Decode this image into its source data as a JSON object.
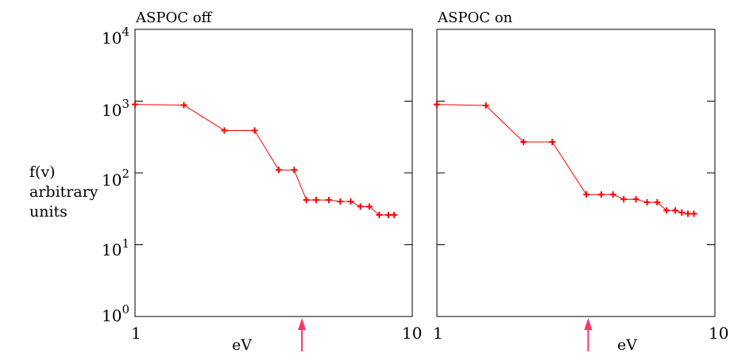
{
  "y_axis_label_lines": [
    "f(v)",
    "arbitrary",
    "units"
  ],
  "chart_data": [
    {
      "type": "line",
      "title": "ASPOC off",
      "xlabel": "eV",
      "ylabel": "f(v) arbitrary units",
      "xscale": "log",
      "yscale": "log",
      "xlim": [
        1,
        10
      ],
      "ylim": [
        1,
        10000
      ],
      "x_tick_labels": [
        "1",
        "10"
      ],
      "y_tick_labels": [
        {
          "base": "10",
          "exp": "0"
        },
        {
          "base": "10",
          "exp": "1"
        },
        {
          "base": "10",
          "exp": "2"
        },
        {
          "base": "10",
          "exp": "3"
        },
        {
          "base": "10",
          "exp": "4"
        }
      ],
      "arrow_marker_x": 4.0,
      "line_color": "#ff0000",
      "arrow_color": "#ff3366",
      "series": [
        {
          "x": [
            1.0,
            1.5,
            2.1,
            2.7,
            3.3,
            3.75,
            4.15,
            4.5,
            5.0,
            5.5,
            6.0,
            6.5,
            7.0,
            7.6,
            8.2,
            8.6
          ],
          "y": [
            900,
            880,
            390,
            390,
            110,
            110,
            42,
            42,
            42,
            40,
            40,
            34,
            34,
            26,
            26,
            26
          ]
        }
      ]
    },
    {
      "type": "line",
      "title": "ASPOC on",
      "xlabel": "eV",
      "ylabel": "f(v) arbitrary units",
      "xscale": "log",
      "yscale": "log",
      "xlim": [
        1,
        10
      ],
      "ylim": [
        1,
        10000
      ],
      "x_tick_labels": [
        "1",
        "10"
      ],
      "y_tick_labels": [],
      "arrow_marker_x": 3.5,
      "line_color": "#ff0000",
      "arrow_color": "#ff3366",
      "series": [
        {
          "x": [
            1.0,
            1.5,
            2.05,
            2.6,
            3.45,
            3.9,
            4.3,
            4.7,
            5.2,
            5.7,
            6.2,
            6.7,
            7.2,
            7.6,
            8.0,
            8.4
          ],
          "y": [
            900,
            870,
            270,
            270,
            50,
            50,
            50,
            43,
            43,
            39,
            39,
            30,
            30,
            28,
            27,
            27
          ]
        }
      ]
    }
  ]
}
